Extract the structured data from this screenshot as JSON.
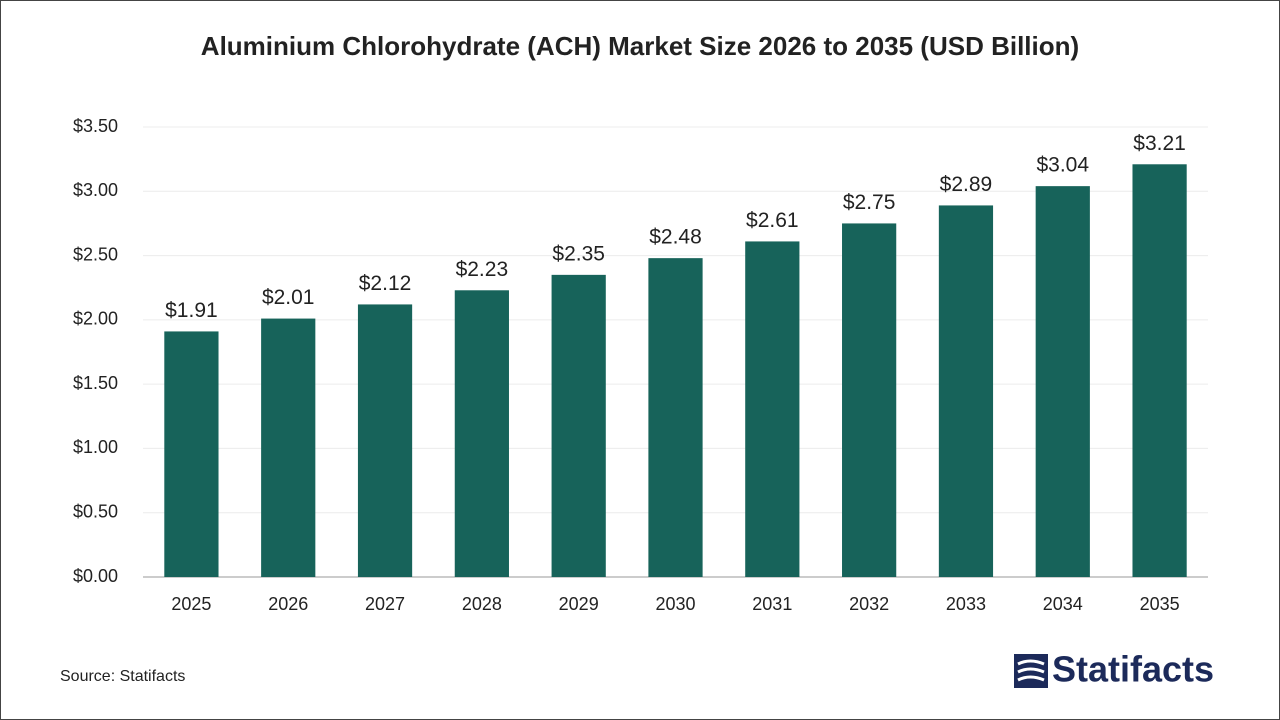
{
  "chart_data": {
    "type": "bar",
    "title": "Aluminium Chlorohydrate (ACH) Market Size 2026 to 2035 (USD Billion)",
    "categories": [
      "2025",
      "2026",
      "2027",
      "2028",
      "2029",
      "2030",
      "2031",
      "2032",
      "2033",
      "2034",
      "2035"
    ],
    "values": [
      1.91,
      2.01,
      2.12,
      2.23,
      2.35,
      2.48,
      2.61,
      2.75,
      2.89,
      3.04,
      3.21
    ],
    "value_labels": [
      "$1.91",
      "$2.01",
      "$2.12",
      "$2.23",
      "$2.35",
      "$2.48",
      "$2.61",
      "$2.75",
      "$2.89",
      "$3.04",
      "$3.21"
    ],
    "color": "#17635a",
    "ylim": [
      0,
      3.5
    ],
    "yticks": [
      {
        "value": 0,
        "label": "$0.00"
      },
      {
        "value": 0.5,
        "label": "$0.50"
      },
      {
        "value": 1,
        "label": "$1.00"
      },
      {
        "value": 1.5,
        "label": "$1.50"
      },
      {
        "value": 2,
        "label": "$2.00"
      },
      {
        "value": 2.5,
        "label": "$2.50"
      },
      {
        "value": 3,
        "label": "$3.00"
      },
      {
        "value": 3.5,
        "label": "$3.50"
      }
    ],
    "grid": true
  },
  "footer": {
    "source": "Source: Statifacts",
    "logo": "Statifacts"
  }
}
